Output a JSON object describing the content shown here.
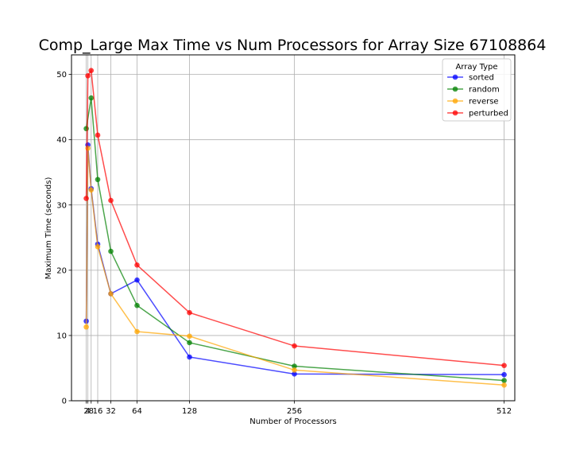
{
  "chart_data": {
    "type": "line",
    "title": "Comp_Large Max Time vs Num Processors for Array Size 67108864",
    "xlabel": "Number of Processors",
    "ylabel": "Maximum Time (seconds)",
    "x": [
      2,
      4,
      8,
      16,
      32,
      64,
      128,
      256,
      512
    ],
    "x_tick_labels": [
      "2",
      "4",
      "8",
      "16",
      "32",
      "64",
      "128",
      "256",
      "512"
    ],
    "y_ticks": [
      0,
      10,
      20,
      30,
      40,
      50
    ],
    "xlim": [
      -16,
      525
    ],
    "ylim": [
      0,
      53
    ],
    "grid": true,
    "legend": {
      "title": "Array Type",
      "placement": "upper right"
    },
    "series": [
      {
        "name": "sorted",
        "color": "#0000ff",
        "values": [
          12.2,
          39.2,
          32.5,
          24.0,
          16.4,
          18.5,
          6.7,
          4.1,
          4.0
        ]
      },
      {
        "name": "random",
        "color": "#008000",
        "values": [
          41.7,
          46.4,
          33.9,
          22.9,
          14.6,
          8.9,
          5.3,
          3.1
        ],
        "x": [
          2,
          8,
          16,
          32,
          64,
          128,
          256,
          512
        ]
      },
      {
        "name": "reverse",
        "color": "#ffa500",
        "values": [
          11.3,
          38.7,
          32.3,
          23.6,
          16.4,
          10.6,
          9.9,
          4.7,
          2.4
        ]
      },
      {
        "name": "perturbed",
        "color": "#ff0000",
        "values": [
          31.0,
          49.8,
          50.6,
          40.7,
          30.7,
          20.8,
          13.5,
          8.4,
          5.4
        ]
      }
    ]
  }
}
